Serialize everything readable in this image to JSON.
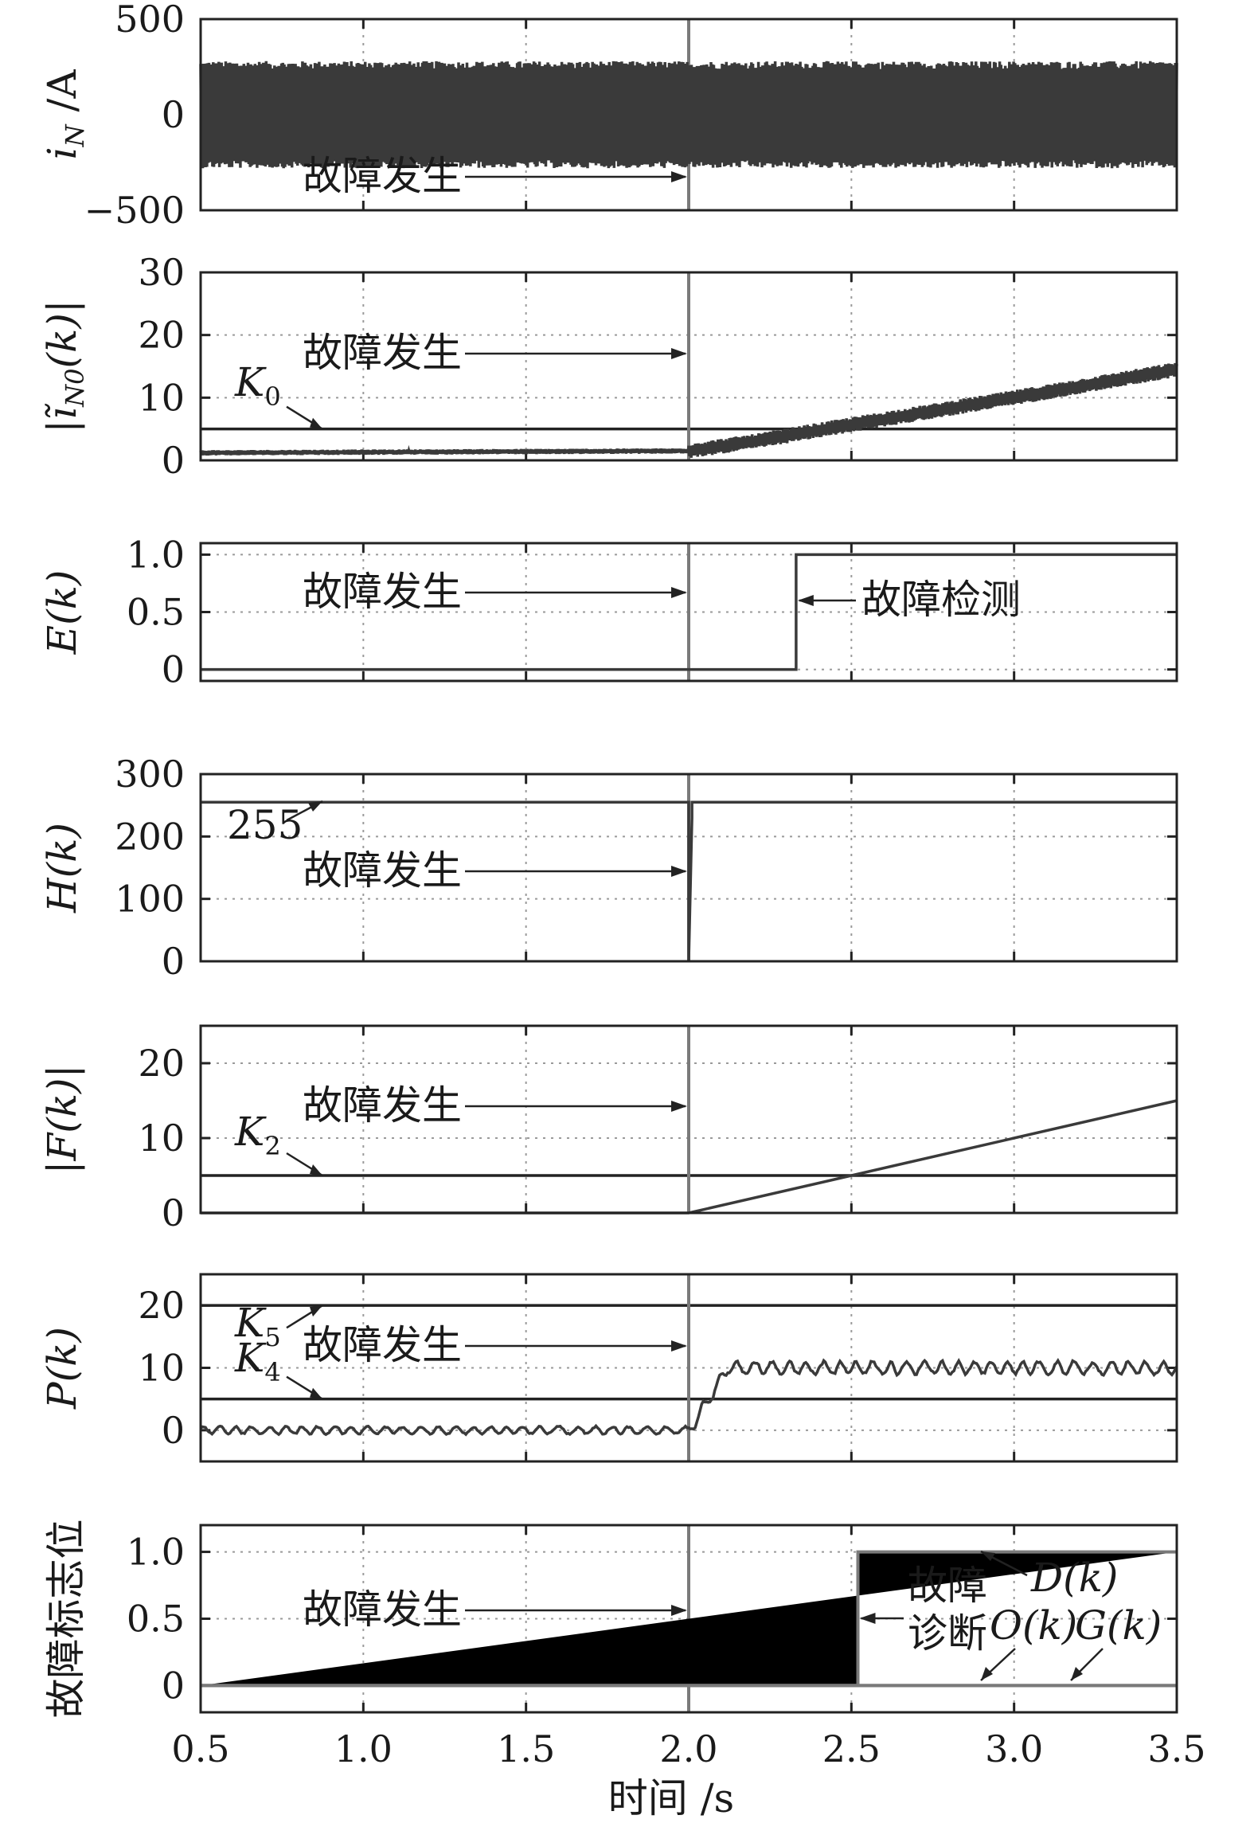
{
  "chart_data": [
    {
      "type": "line",
      "ylabel": "i_N /A",
      "ylabel_main": "i",
      "ylabel_sub": "N",
      "ylabel_tail": " /A",
      "xlim": [
        0.5,
        3.5
      ],
      "ylim": [
        -500,
        500
      ],
      "yticks": [
        -500,
        0,
        500
      ],
      "ytick_labels": [
        "−500",
        "0",
        "500"
      ],
      "grid": true,
      "series": [
        {
          "values_desc": "oscillating",
          "amplitude": 280,
          "x_start": 0.5,
          "x_end": 3.5
        }
      ],
      "annotations": [
        {
          "text": "故障发生",
          "arrow_to_x": 2.0,
          "at_y": -380
        }
      ]
    },
    {
      "type": "line",
      "ylabel": "|ĩ_N0(k)|",
      "ylabel_main": "|ĩ",
      "ylabel_sub": "N0",
      "ylabel_tail": "(k)|",
      "xlim": [
        0.5,
        3.5
      ],
      "ylim": [
        0,
        30
      ],
      "yticks": [
        0,
        10,
        20,
        30
      ],
      "ytick_labels": [
        "0",
        "10",
        "20",
        "30"
      ],
      "grid": true,
      "thresholds": [
        {
          "name": "K",
          "sub": "0",
          "value": 5
        }
      ],
      "series": [
        {
          "x": [
            0.5,
            2.0,
            2.2,
            2.5,
            3.0,
            3.5
          ],
          "y": [
            1.2,
            1.5,
            3.0,
            5.7,
            10.0,
            14.5
          ],
          "band": 1.2
        }
      ],
      "annotations": [
        {
          "text": "故障发生",
          "arrow_to_x": 2.0,
          "at_y": 15
        }
      ]
    },
    {
      "type": "line",
      "ylabel": "E(k)",
      "xlim": [
        0.5,
        3.5
      ],
      "ylim": [
        -0.1,
        1.1
      ],
      "yticks": [
        0,
        0.5,
        1.0
      ],
      "ytick_labels": [
        "0",
        "0.5",
        "1.0"
      ],
      "grid": true,
      "series": [
        {
          "x": [
            0.5,
            2.33,
            2.33,
            3.5
          ],
          "y": [
            0,
            0,
            1,
            1
          ]
        }
      ],
      "annotations": [
        {
          "text": "故障发生",
          "arrow_to_x": 2.0,
          "at_y": 0.5
        },
        {
          "text": "故障检测",
          "arrow_to_x": 2.33,
          "at_y": 0.5
        }
      ]
    },
    {
      "type": "line",
      "ylabel": "H(k)",
      "xlim": [
        0.5,
        3.5
      ],
      "ylim": [
        0,
        300
      ],
      "yticks": [
        0,
        100,
        200,
        300
      ],
      "ytick_labels": [
        "0",
        "100",
        "200",
        "300"
      ],
      "grid": true,
      "series": [
        {
          "x": [
            0.5,
            2.0,
            2.0,
            2.01,
            2.01,
            3.5
          ],
          "y": [
            255,
            255,
            0,
            230,
            255,
            255
          ]
        }
      ],
      "annotations": [
        {
          "text": "255",
          "arrow_to_y": 255,
          "at_x": 0.85
        },
        {
          "text": "故障发生",
          "arrow_to_x": 2.0,
          "at_y": 115
        }
      ]
    },
    {
      "type": "line",
      "ylabel": "|F(k)|",
      "xlim": [
        0.5,
        3.5
      ],
      "ylim": [
        0,
        25
      ],
      "yticks": [
        0,
        10,
        20
      ],
      "ytick_labels": [
        "0",
        "10",
        "20"
      ],
      "grid": true,
      "thresholds": [
        {
          "name": "K",
          "sub": "2",
          "value": 5
        }
      ],
      "series": [
        {
          "x": [
            0.5,
            2.0,
            3.5
          ],
          "y": [
            0,
            0,
            15
          ]
        }
      ],
      "annotations": [
        {
          "text": "故障发生",
          "arrow_to_x": 2.0,
          "at_y": 11.5
        }
      ]
    },
    {
      "type": "line",
      "ylabel": "P(k)",
      "xlim": [
        0.5,
        3.5
      ],
      "ylim": [
        -5,
        25
      ],
      "yticks": [
        0,
        10,
        20
      ],
      "ytick_labels": [
        "0",
        "10",
        "20"
      ],
      "grid": true,
      "thresholds": [
        {
          "name": "K",
          "sub": "5",
          "value": 20
        },
        {
          "name": "K",
          "sub": "4",
          "value": 5
        }
      ],
      "series": [
        {
          "x": [
            0.5,
            2.0,
            2.05,
            2.12,
            3.5
          ],
          "y": [
            0,
            0,
            4,
            10,
            10
          ],
          "noise_before": 0.7,
          "noise_after": 1.2
        }
      ],
      "annotations": [
        {
          "text": "故障发生",
          "arrow_to_x": 2.0,
          "at_y": 10
        }
      ]
    },
    {
      "type": "line",
      "ylabel": "故障标志位",
      "xlim": [
        0.5,
        3.5
      ],
      "ylim": [
        -0.2,
        1.2
      ],
      "yticks": [
        0,
        0.5,
        1.0
      ],
      "ytick_labels": [
        "0",
        "0.5",
        "1.0"
      ],
      "xticks": [
        0.5,
        1.0,
        1.5,
        2.0,
        2.5,
        3.0,
        3.5
      ],
      "xtick_labels": [
        "0.5",
        "1.0",
        "1.5",
        "2.0",
        "2.5",
        "3.0",
        "3.5"
      ],
      "xlabel": "时间 /s",
      "grid": true,
      "series": [
        {
          "name": "D(k)",
          "x": [
            0.5,
            2.52,
            2.52,
            3.5
          ],
          "y": [
            0,
            0,
            1,
            1
          ]
        },
        {
          "name": "O(k)",
          "x": [
            0.5,
            3.5
          ],
          "y": [
            0,
            0
          ]
        },
        {
          "name": "G(k)",
          "x": [
            0.5,
            3.5
          ],
          "y": [
            0,
            0
          ]
        }
      ],
      "annotations": [
        {
          "text": "故障发生",
          "arrow_to_x": 2.0,
          "at_y": 0.5
        },
        {
          "text": "故障",
          "text2": "诊断",
          "arrow_to_x": 2.52,
          "at_y": 0.5
        },
        {
          "text": "D(k)"
        },
        {
          "text": "O(k)"
        },
        {
          "text": "G(k)"
        }
      ]
    }
  ]
}
